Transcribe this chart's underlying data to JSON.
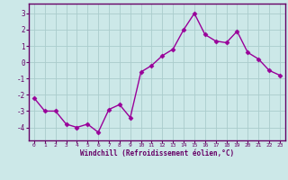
{
  "x": [
    0,
    1,
    2,
    3,
    4,
    5,
    6,
    7,
    8,
    9,
    10,
    11,
    12,
    13,
    14,
    15,
    16,
    17,
    18,
    19,
    20,
    21,
    22,
    23
  ],
  "y": [
    -2.2,
    -3.0,
    -3.0,
    -3.8,
    -4.0,
    -3.8,
    -4.3,
    -2.9,
    -2.6,
    -3.4,
    -0.6,
    -0.2,
    0.4,
    0.8,
    2.0,
    3.0,
    1.7,
    1.3,
    1.2,
    1.9,
    0.6,
    0.2,
    -0.5,
    -0.8
  ],
  "line_color": "#990099",
  "marker": "D",
  "marker_size": 2.5,
  "bg_color": "#cce8e8",
  "grid_color": "#aacccc",
  "xlabel": "Windchill (Refroidissement éolien,°C)",
  "xlabel_color": "#660066",
  "tick_color": "#660066",
  "axis_color": "#660066",
  "ylim": [
    -4.8,
    3.6
  ],
  "yticks": [
    -4,
    -3,
    -2,
    -1,
    0,
    1,
    2,
    3
  ],
  "xlim": [
    -0.5,
    23.5
  ],
  "xticks": [
    0,
    1,
    2,
    3,
    4,
    5,
    6,
    7,
    8,
    9,
    10,
    11,
    12,
    13,
    14,
    15,
    16,
    17,
    18,
    19,
    20,
    21,
    22,
    23
  ]
}
